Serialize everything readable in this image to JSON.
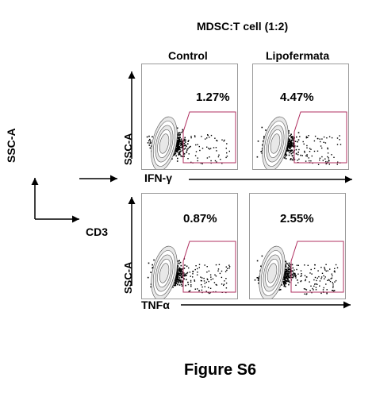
{
  "figure": {
    "title": "MDSC:T cell (1:2)",
    "caption": "Figure S6",
    "columns": [
      "Control",
      "Lipofermata"
    ],
    "schematic": {
      "y_axis": "SSC-A",
      "x_axis": "CD3"
    },
    "rows": [
      {
        "y_label": "SSC-A",
        "x_label": "IFN-γ",
        "values": [
          "1.27%",
          "4.47%"
        ]
      },
      {
        "y_label": "SSC-A",
        "x_label": "TNFα",
        "values": [
          "0.87%",
          "2.55%"
        ]
      }
    ]
  },
  "colors": {
    "gate": "#b03060",
    "frame": "#9a9a9a",
    "ink": "#000000"
  }
}
